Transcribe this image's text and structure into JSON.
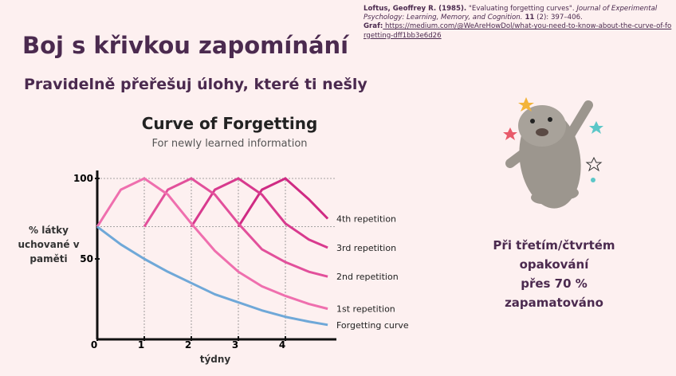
{
  "title": "Boj s křivkou zapomínání",
  "subtitle": "Pravidelně přeřešuj úlohy, které ti nešly",
  "citation": {
    "author": "Loftus, Geoffrey R. (1985).",
    "article": " \"Evaluating forgetting curves\". ",
    "journal": "Journal of Experimental Psychology: Learning, Memory, and Cognition.",
    "volume": " 11",
    "pages": " (2): 397–406.",
    "graph_label": "Graf:",
    "graph_url": " https://medium.com/@WeAreHowDol/what-you-need-to-know-about-the-curve-of-forgetting-dff1bb3e6d26"
  },
  "note": [
    "Při třetím/čtvrtém",
    "opakování",
    "přes 70 %",
    "zapamatováno"
  ],
  "chart_data": {
    "type": "line",
    "title": "Curve of Forgetting",
    "subtitle": "For newly learned information",
    "ylabel": "% látky uchované v paměti",
    "xlabel": "týdny",
    "x": [
      0,
      0.5,
      1,
      1.5,
      2,
      2.5,
      3,
      3.5,
      4,
      4.5,
      4.9
    ],
    "series": [
      {
        "name": "4th repetition",
        "color": "#cf2a83",
        "values": [
          null,
          null,
          null,
          null,
          null,
          null,
          70,
          93,
          100,
          87,
          75
        ]
      },
      {
        "name": "3rd repetition",
        "color": "#d83a8e",
        "values": [
          null,
          null,
          null,
          null,
          70,
          93,
          100,
          90,
          72,
          62,
          57
        ]
      },
      {
        "name": "2nd repetition",
        "color": "#e2509b",
        "values": [
          null,
          null,
          70,
          93,
          100,
          90,
          72,
          56,
          48,
          42,
          39
        ]
      },
      {
        "name": "1st repetition",
        "color": "#ef6fae",
        "values": [
          70,
          93,
          100,
          90,
          72,
          55,
          42,
          33,
          27,
          22,
          19
        ]
      },
      {
        "name": "Forgetting curve",
        "color": "#6fa8d8",
        "values": [
          70,
          59,
          50,
          42,
          35,
          28,
          23,
          18,
          14,
          11,
          9
        ]
      }
    ],
    "xlim": [
      0,
      5
    ],
    "ylim": [
      0,
      100
    ],
    "xticks": [
      0,
      1,
      2,
      3,
      4
    ],
    "yticks": [
      50,
      100
    ],
    "reference_lines": [
      70,
      100
    ]
  }
}
